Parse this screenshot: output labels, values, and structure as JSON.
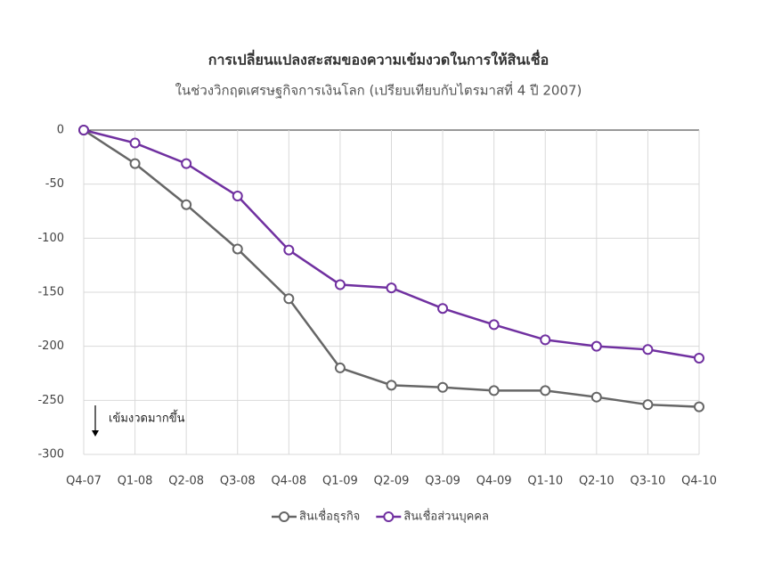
{
  "chart_data": {
    "type": "line",
    "title": "การเปลี่ยนแปลงสะสมของความเข้มงวดในการให้สินเชื่อ",
    "subtitle": "ในช่วงวิกฤตเศรษฐกิจการเงินโลก (เปรียบเทียบกับไตรมาสที่ 4 ปี 2007)",
    "annotation": "เข้มงวดมากขึ้น",
    "categories": [
      "Q4-07",
      "Q1-08",
      "Q2-08",
      "Q3-08",
      "Q4-08",
      "Q1-09",
      "Q2-09",
      "Q3-09",
      "Q4-09",
      "Q1-10",
      "Q2-10",
      "Q3-10",
      "Q4-10"
    ],
    "series": [
      {
        "name": "สินเชื่อธุรกิจ",
        "color": "#666666",
        "values": [
          0,
          -31,
          -69,
          -110,
          -156,
          -220,
          -236,
          -238,
          -241,
          -241,
          -247,
          -254,
          -256
        ]
      },
      {
        "name": "สินเชื่อส่วนบุคคล",
        "color": "#7030a0",
        "values": [
          0,
          -12,
          -31,
          -61,
          -111,
          -143,
          -146,
          -165,
          -180,
          -194,
          -200,
          -203,
          -211
        ]
      }
    ],
    "ylim": [
      -300,
      0
    ],
    "yticks": [
      0,
      -50,
      -100,
      -150,
      -200,
      -250,
      -300
    ],
    "grid": true,
    "legend": "bottom"
  }
}
